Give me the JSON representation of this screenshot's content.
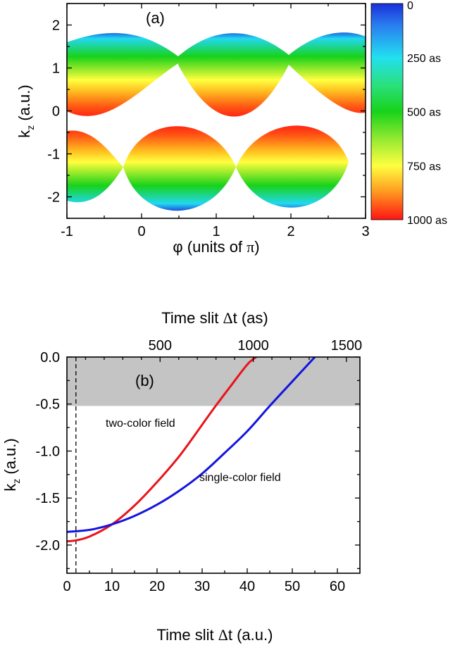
{
  "chart_data": [
    {
      "panel_label": "(a)",
      "type": "heatmap",
      "xlabel_base": "φ (units of ",
      "xlabel_pi": "π",
      "xlabel_close": ")",
      "ylabel_main": "k",
      "ylabel_sub": "z",
      "ylabel_rest": " (a.u.)",
      "xlim": [
        -1,
        3
      ],
      "ylim": [
        -2.5,
        2.5
      ],
      "xticks": [
        "-1",
        "0",
        "1",
        "2",
        "3"
      ],
      "yticks": [
        "-2",
        "-1",
        "0",
        "1",
        "2"
      ],
      "colorbar": {
        "labels": [
          "0",
          "250 as",
          "500 as",
          "750 as",
          "1000 as"
        ],
        "values": [
          0,
          250,
          500,
          750,
          1000
        ],
        "colors": [
          "#1a2fd8",
          "#22e0f0",
          "#18d21a",
          "#ffff40",
          "#ff1414"
        ]
      }
    },
    {
      "panel_label": "(b)",
      "type": "line",
      "top_xlabel_base": "Time slit ",
      "top_xlabel_delta": "Δ",
      "top_xlabel_rest": "t (as)",
      "xlabel_base": "Time slit ",
      "xlabel_delta": "Δ",
      "xlabel_rest": "t (a.u.)",
      "ylabel_main": "k",
      "ylabel_sub": "z",
      "ylabel_rest": " (a.u.)",
      "xlim": [
        0,
        65
      ],
      "ylim": [
        -2.3,
        0.0
      ],
      "xticks": [
        "0",
        "10",
        "20",
        "30",
        "40",
        "50",
        "60"
      ],
      "yticks": [
        "0.0",
        "-0.5",
        "-1.0",
        "-1.5",
        "-2.0"
      ],
      "top_xticks": [
        "500",
        "1000",
        "1500"
      ],
      "shaded_region": {
        "ymin": -0.52,
        "ymax": 0.0,
        "color": "#c4c4c4"
      },
      "dashed_vline_x": 2,
      "series": [
        {
          "name": "two-color field",
          "color": "#e8141a",
          "x": [
            0,
            2,
            5,
            10,
            15,
            20,
            25,
            30,
            33,
            36,
            40,
            42
          ],
          "y": [
            -1.96,
            -1.95,
            -1.91,
            -1.78,
            -1.58,
            -1.33,
            -1.05,
            -0.72,
            -0.52,
            -0.33,
            -0.08,
            0.0
          ]
        },
        {
          "name": "single-color field",
          "color": "#1414e0",
          "x": [
            0,
            3,
            6,
            10,
            15,
            20,
            25,
            30,
            35,
            40,
            45,
            50,
            55
          ],
          "y": [
            -1.86,
            -1.85,
            -1.83,
            -1.78,
            -1.69,
            -1.57,
            -1.42,
            -1.24,
            -1.02,
            -0.79,
            -0.52,
            -0.26,
            0.0
          ]
        }
      ]
    }
  ]
}
